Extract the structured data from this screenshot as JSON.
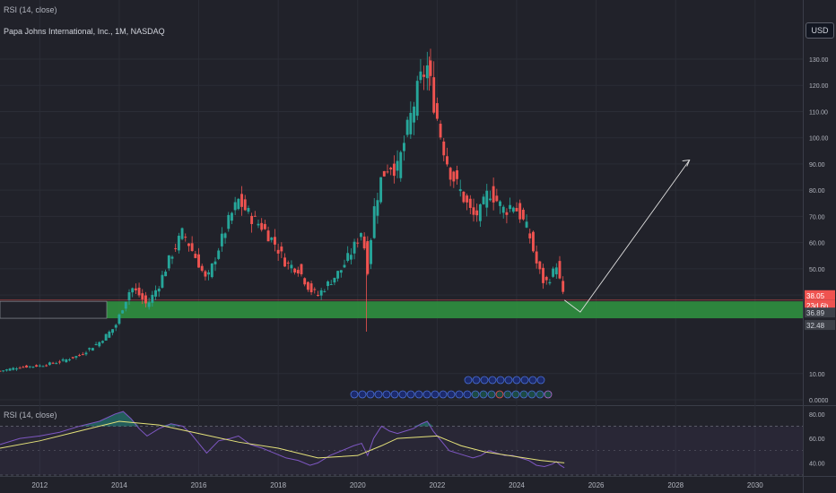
{
  "header": {
    "top_indicator_label": "RSI (14, close)",
    "symbol_title": "Papa Johns International, Inc., 1M, NASDAQ",
    "currency": "USD",
    "rsi_pane_label": "RSI (14, close)"
  },
  "colors": {
    "background": "#21222a",
    "up": "#26a69a",
    "down": "#ef5350",
    "zone": "#2e8b3e",
    "rsi_line": "#7e57c2",
    "rsi_ma": "#e5e27a",
    "projection": "#e0e0e0"
  },
  "price_labels": {
    "current": "38.05",
    "countdown": "23d 6h",
    "zone_top": "36.89",
    "zone_bottom": "32.48"
  },
  "chart_data": [
    {
      "type": "candlestick",
      "title": "Papa Johns International, Inc., 1M, NASDAQ",
      "ylim": [
        0,
        135
      ],
      "xlim": [
        2011.0,
        2031.2
      ],
      "y_ticks": [
        "130.00",
        "120.00",
        "110.00",
        "100.00",
        "90.00",
        "80.00",
        "70.00",
        "60.00",
        "50.00",
        "40.00",
        "10.00",
        "0.0000"
      ],
      "y_tick_values": [
        130,
        120,
        110,
        100,
        90,
        80,
        70,
        60,
        50,
        40,
        10,
        0
      ],
      "x_ticks": [
        "2012",
        "2014",
        "2016",
        "2018",
        "2020",
        "2022",
        "2024",
        "2026",
        "2028",
        "2030"
      ],
      "x_tick_values": [
        2012,
        2014,
        2016,
        2018,
        2020,
        2022,
        2024,
        2026,
        2028,
        2030
      ],
      "close_path": [
        [
          2011.0,
          11
        ],
        [
          2011.5,
          12.5
        ],
        [
          2012.0,
          13
        ],
        [
          2012.5,
          14.5
        ],
        [
          2013.0,
          17
        ],
        [
          2013.5,
          22
        ],
        [
          2013.9,
          28
        ],
        [
          2014.1,
          36
        ],
        [
          2014.3,
          43
        ],
        [
          2014.5,
          40
        ],
        [
          2014.7,
          36
        ],
        [
          2015.0,
          44
        ],
        [
          2015.3,
          55
        ],
        [
          2015.6,
          64
        ],
        [
          2015.8,
          58
        ],
        [
          2016.0,
          52
        ],
        [
          2016.2,
          45
        ],
        [
          2016.5,
          58
        ],
        [
          2016.8,
          70
        ],
        [
          2017.0,
          76
        ],
        [
          2017.3,
          70
        ],
        [
          2017.6,
          66
        ],
        [
          2017.9,
          60
        ],
        [
          2018.2,
          52
        ],
        [
          2018.5,
          50
        ],
        [
          2018.8,
          42
        ],
        [
          2019.0,
          40
        ],
        [
          2019.3,
          45
        ],
        [
          2019.6,
          50
        ],
        [
          2019.9,
          58
        ],
        [
          2020.1,
          65
        ],
        [
          2020.25,
          50
        ],
        [
          2020.4,
          72
        ],
        [
          2020.6,
          85
        ],
        [
          2020.8,
          90
        ],
        [
          2021.0,
          88
        ],
        [
          2021.2,
          100
        ],
        [
          2021.4,
          112
        ],
        [
          2021.6,
          123
        ],
        [
          2021.75,
          127
        ],
        [
          2021.9,
          115
        ],
        [
          2022.1,
          100
        ],
        [
          2022.3,
          88
        ],
        [
          2022.5,
          82
        ],
        [
          2022.7,
          76
        ],
        [
          2022.9,
          70
        ],
        [
          2023.1,
          72
        ],
        [
          2023.3,
          80
        ],
        [
          2023.5,
          76
        ],
        [
          2023.7,
          72
        ],
        [
          2023.9,
          75
        ],
        [
          2024.1,
          70
        ],
        [
          2024.3,
          64
        ],
        [
          2024.5,
          52
        ],
        [
          2024.7,
          44
        ],
        [
          2024.9,
          48
        ],
        [
          2025.0,
          52
        ],
        [
          2025.1,
          44
        ],
        [
          2025.2,
          38.05
        ]
      ],
      "support_zone": [
        32.48,
        36.89
      ],
      "projection_path": [
        [
          2025.2,
          38.05
        ],
        [
          2025.6,
          33.5
        ],
        [
          2028.35,
          91.5
        ]
      ]
    },
    {
      "type": "line",
      "title": "RSI (14, close)",
      "ylim": [
        30,
        85
      ],
      "y_ticks": [
        "80.00",
        "60.00",
        "40.00"
      ],
      "y_tick_values": [
        80,
        60,
        40
      ],
      "band": [
        30,
        70
      ],
      "mid_line": 50,
      "series": [
        {
          "name": "RSI",
          "points": [
            [
              2011.0,
              55
            ],
            [
              2011.5,
              60
            ],
            [
              2012.0,
              62
            ],
            [
              2012.5,
              65
            ],
            [
              2013.0,
              70
            ],
            [
              2013.5,
              74
            ],
            [
              2013.9,
              80
            ],
            [
              2014.1,
              82
            ],
            [
              2014.3,
              76
            ],
            [
              2014.5,
              68
            ],
            [
              2014.7,
              62
            ],
            [
              2015.0,
              68
            ],
            [
              2015.3,
              72
            ],
            [
              2015.6,
              70
            ],
            [
              2015.8,
              64
            ],
            [
              2016.0,
              56
            ],
            [
              2016.2,
              48
            ],
            [
              2016.5,
              58
            ],
            [
              2016.8,
              60
            ],
            [
              2017.0,
              62
            ],
            [
              2017.3,
              55
            ],
            [
              2017.6,
              52
            ],
            [
              2017.9,
              48
            ],
            [
              2018.2,
              44
            ],
            [
              2018.5,
              42
            ],
            [
              2018.8,
              38
            ],
            [
              2019.0,
              40
            ],
            [
              2019.3,
              46
            ],
            [
              2019.6,
              50
            ],
            [
              2019.9,
              54
            ],
            [
              2020.1,
              56
            ],
            [
              2020.25,
              46
            ],
            [
              2020.4,
              60
            ],
            [
              2020.6,
              70
            ],
            [
              2020.8,
              66
            ],
            [
              2021.0,
              64
            ],
            [
              2021.2,
              66
            ],
            [
              2021.4,
              68
            ],
            [
              2021.6,
              72
            ],
            [
              2021.75,
              74
            ],
            [
              2021.9,
              66
            ],
            [
              2022.1,
              58
            ],
            [
              2022.3,
              50
            ],
            [
              2022.5,
              48
            ],
            [
              2022.7,
              46
            ],
            [
              2022.9,
              44
            ],
            [
              2023.1,
              46
            ],
            [
              2023.3,
              50
            ],
            [
              2023.5,
              48
            ],
            [
              2023.7,
              46
            ],
            [
              2023.9,
              46
            ],
            [
              2024.1,
              44
            ],
            [
              2024.3,
              42
            ],
            [
              2024.5,
              38
            ],
            [
              2024.7,
              37
            ],
            [
              2024.9,
              39
            ],
            [
              2025.0,
              41
            ],
            [
              2025.1,
              38
            ],
            [
              2025.2,
              36
            ]
          ]
        },
        {
          "name": "RSI-based MA",
          "points": [
            [
              2011.0,
              52
            ],
            [
              2012.0,
              58
            ],
            [
              2013.0,
              66
            ],
            [
              2014.0,
              74
            ],
            [
              2015.0,
              71
            ],
            [
              2016.0,
              64
            ],
            [
              2017.0,
              57
            ],
            [
              2018.0,
              52
            ],
            [
              2019.0,
              44
            ],
            [
              2020.0,
              46
            ],
            [
              2020.6,
              54
            ],
            [
              2021.0,
              60
            ],
            [
              2022.0,
              62
            ],
            [
              2022.6,
              54
            ],
            [
              2023.2,
              49
            ],
            [
              2024.0,
              45
            ],
            [
              2024.6,
              42
            ],
            [
              2025.2,
              40
            ]
          ]
        }
      ]
    }
  ]
}
